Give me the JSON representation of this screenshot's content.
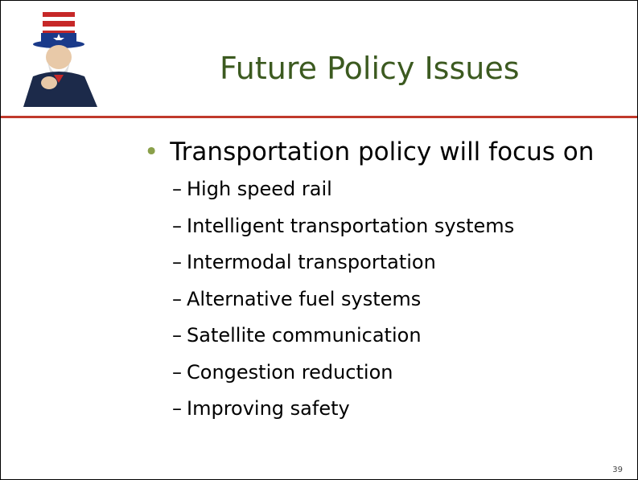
{
  "title": "Future Policy Issues",
  "bullet": "Transportation policy will focus on",
  "dash": "–",
  "items": [
    "High speed rail",
    "Intelligent transportation systems",
    "Intermodal transportation",
    "Alternative fuel systems",
    "Satellite communication",
    "Congestion reduction",
    "Improving safety"
  ],
  "page_number": "39"
}
